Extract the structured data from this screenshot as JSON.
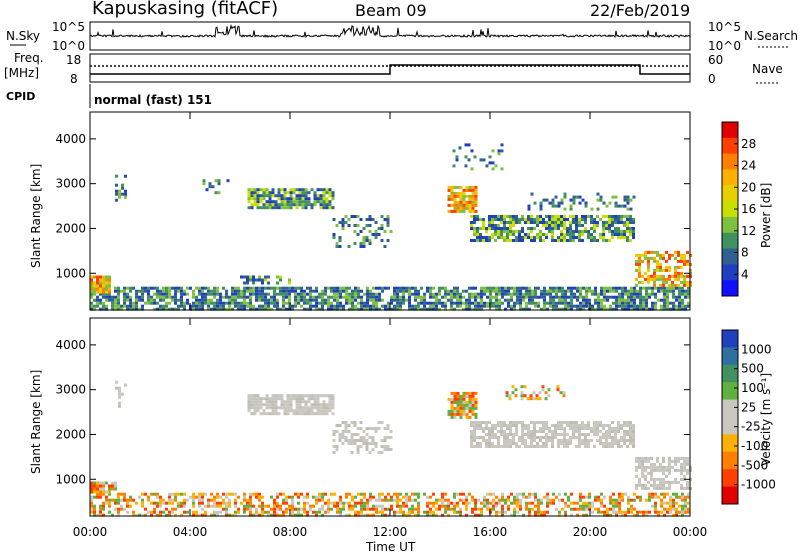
{
  "header": {
    "station": "Kapuskasing (fitACF)",
    "beam": "Beam 09",
    "date": "22/Feb/2019"
  },
  "top_panels": {
    "nsky_label": "N.Sky",
    "nsky_ticks": [
      "10^5",
      "10^0"
    ],
    "nsearch_label": "N.Search",
    "nsearch_ticks": [
      "10^5",
      "10^0"
    ],
    "freq_label": "Freq.",
    "freq_unit": "[MHz]",
    "freq_ticks": [
      "18",
      "8"
    ],
    "nave_label": "Nave",
    "nave_ticks": [
      "60",
      "0"
    ],
    "cpid_label": "CPID",
    "cpid_text": "normal (fast) 151"
  },
  "axes": {
    "y_label": "Slant Range [km]",
    "y_ticks": [
      "4000",
      "3000",
      "2000",
      "1000"
    ],
    "x_label": "Time UT",
    "x_ticks": [
      "00:00",
      "04:00",
      "08:00",
      "12:00",
      "16:00",
      "20:00",
      "00:00"
    ]
  },
  "colorbars": {
    "power": {
      "label": "Power [dB]",
      "ticks": [
        "28",
        "24",
        "20",
        "16",
        "12",
        "8",
        "4"
      ],
      "colors": [
        "#e00000",
        "#ff4000",
        "#ff8000",
        "#ffb000",
        "#e8d000",
        "#c8e000",
        "#80c040",
        "#409060",
        "#306090",
        "#2040c0",
        "#1010ff"
      ]
    },
    "velocity": {
      "label": "Velocity [m s⁻¹]",
      "ticks": [
        "1000",
        "500",
        "100",
        "25",
        "-25",
        "-100",
        "-500",
        "-1000"
      ],
      "colors": [
        "#2040c0",
        "#3070a0",
        "#409060",
        "#60b040",
        "#c8c8c0",
        "#c8c8c0",
        "#ffb000",
        "#ff8000",
        "#ff4000",
        "#e00000"
      ]
    }
  },
  "chart_data": [
    {
      "type": "heatmap",
      "name": "power",
      "xlabel": "Time UT",
      "ylabel": "Slant Range [km]",
      "xlim": [
        0,
        24
      ],
      "ylim": [
        180,
        4600
      ],
      "regions": [
        {
          "t": [
            0,
            24
          ],
          "r": [
            200,
            700
          ],
          "level": "low",
          "density": 0.75
        },
        {
          "t": [
            0,
            0.8
          ],
          "r": [
            600,
            950
          ],
          "level": "high",
          "density": 0.9
        },
        {
          "t": [
            1.0,
            1.4
          ],
          "r": [
            2600,
            3200
          ],
          "level": "low",
          "density": 0.4
        },
        {
          "t": [
            4.5,
            5.5
          ],
          "r": [
            2800,
            3100
          ],
          "level": "low",
          "density": 0.3
        },
        {
          "t": [
            6.3,
            9.7
          ],
          "r": [
            2450,
            2900
          ],
          "level": "mid",
          "density": 0.8
        },
        {
          "t": [
            9.7,
            12.0
          ],
          "r": [
            1600,
            2300
          ],
          "level": "low",
          "density": 0.35
        },
        {
          "t": [
            6.0,
            8.0
          ],
          "r": [
            750,
            950
          ],
          "level": "mid",
          "density": 0.4
        },
        {
          "t": [
            14.3,
            15.5
          ],
          "r": [
            2400,
            2950
          ],
          "level": "high",
          "density": 0.8
        },
        {
          "t": [
            15.2,
            21.8
          ],
          "r": [
            1700,
            2300
          ],
          "level": "mid",
          "density": 0.7
        },
        {
          "t": [
            17.5,
            21.8
          ],
          "r": [
            2400,
            2800
          ],
          "level": "low",
          "density": 0.3
        },
        {
          "t": [
            14.5,
            16.5
          ],
          "r": [
            3300,
            3900
          ],
          "level": "low",
          "density": 0.2
        },
        {
          "t": [
            21.8,
            24.0
          ],
          "r": [
            700,
            1500
          ],
          "level": "high",
          "density": 0.6
        }
      ]
    },
    {
      "type": "heatmap",
      "name": "velocity",
      "xlabel": "Time UT",
      "ylabel": "Slant Range [km]",
      "xlim": [
        0,
        24
      ],
      "ylim": [
        180,
        4600
      ],
      "regions": [
        {
          "t": [
            0,
            24
          ],
          "r": [
            200,
            700
          ],
          "level": "neg",
          "density": 0.55
        },
        {
          "t": [
            0,
            1.0
          ],
          "r": [
            700,
            950
          ],
          "level": "neg",
          "density": 0.8
        },
        {
          "t": [
            1.0,
            1.4
          ],
          "r": [
            2600,
            3200
          ],
          "level": "zero",
          "density": 0.4
        },
        {
          "t": [
            6.3,
            9.7
          ],
          "r": [
            2450,
            2900
          ],
          "level": "zero",
          "density": 0.8
        },
        {
          "t": [
            9.7,
            12.0
          ],
          "r": [
            1600,
            2300
          ],
          "level": "zero",
          "density": 0.4
        },
        {
          "t": [
            14.3,
            15.5
          ],
          "r": [
            2400,
            2950
          ],
          "level": "neg",
          "density": 0.85
        },
        {
          "t": [
            15.2,
            21.8
          ],
          "r": [
            1700,
            2300
          ],
          "level": "zero",
          "density": 0.75
        },
        {
          "t": [
            16.5,
            19.0
          ],
          "r": [
            2800,
            3100
          ],
          "level": "neg",
          "density": 0.3
        },
        {
          "t": [
            21.8,
            24.0
          ],
          "r": [
            800,
            1500
          ],
          "level": "zero",
          "density": 0.6
        }
      ]
    }
  ]
}
